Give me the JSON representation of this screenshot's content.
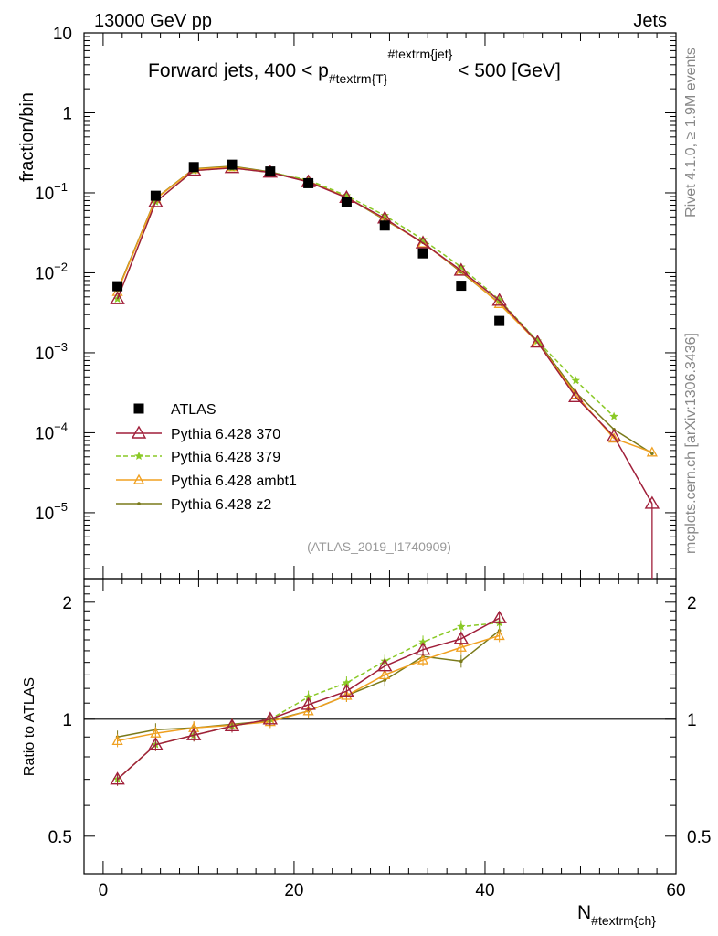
{
  "header": {
    "left": "13000 GeV pp",
    "right": "Jets"
  },
  "side_labels": {
    "upper": "Rivet 4.1.0, ≥ 1.9M events",
    "lower": "mcplots.cern.ch [arXiv:1306.3436]"
  },
  "chart_data": {
    "type": "line",
    "title": "Forward jets, 400 < p",
    "title_sub": "#textrm{T}",
    "title_sup": "#textrm{jet}",
    "title_tail": " < 500 [GeV]",
    "ylabel": "fraction/bin",
    "ratio_ylabel": "Ratio to ATLAS",
    "xlabel": "N",
    "xlabel_sub": "#textrm{ch}",
    "watermark": "(ATLAS_2019_I1740909)",
    "xlim": [
      -2,
      60
    ],
    "ylim": [
      1.5e-06,
      10
    ],
    "ratio_ylim": [
      0.4,
      2.3
    ],
    "x_ticks": [
      "0",
      "20",
      "40",
      "60"
    ],
    "y_ticks": [
      {
        "base": "10",
        "exp": "",
        "value": 10
      },
      {
        "base": "1",
        "exp": "",
        "value": 1
      },
      {
        "base": "10",
        "exp": "−1",
        "value": 0.1
      },
      {
        "base": "10",
        "exp": "−2",
        "value": 0.01
      },
      {
        "base": "10",
        "exp": "−3",
        "value": 0.001
      },
      {
        "base": "10",
        "exp": "−4",
        "value": 0.0001
      },
      {
        "base": "10",
        "exp": "−5",
        "value": 1e-05
      }
    ],
    "ratio_ticks": [
      "0.5",
      "1",
      "2"
    ],
    "x": [
      1.5,
      5.5,
      9.5,
      13.5,
      17.5,
      21.5,
      25.5,
      29.5,
      33.5,
      37.5,
      41.5,
      45.5,
      49.5,
      53.5,
      57.5
    ],
    "series": [
      {
        "name": "ATLAS",
        "color": "#000000",
        "marker": "square",
        "values": [
          0.0068,
          0.092,
          0.21,
          0.225,
          0.185,
          0.132,
          0.077,
          0.039,
          0.0175,
          0.0069,
          0.0025,
          null,
          null,
          null,
          null
        ],
        "ratio": []
      },
      {
        "name": "Pythia 6.428 370",
        "color": "#a01f3a",
        "marker": "open-triangle",
        "values": [
          0.0047,
          0.077,
          0.19,
          0.205,
          0.18,
          0.137,
          0.087,
          0.048,
          0.0235,
          0.0107,
          0.0045,
          0.00135,
          0.00028,
          9e-05,
          1.3e-05
        ],
        "ratio": [
          0.7,
          0.86,
          0.91,
          0.96,
          1.0,
          1.09,
          1.18,
          1.37,
          1.51,
          1.61,
          1.82
        ]
      },
      {
        "name": "Pythia 6.428 379",
        "color": "#8ac926",
        "marker": "star",
        "dashed": true,
        "values": [
          0.0047,
          0.077,
          0.19,
          0.205,
          0.18,
          0.145,
          0.092,
          0.052,
          0.026,
          0.0118,
          0.0046,
          0.0014,
          0.00045,
          0.00016,
          null
        ],
        "ratio": [
          0.7,
          0.86,
          0.91,
          0.96,
          1.0,
          1.14,
          1.24,
          1.41,
          1.58,
          1.73,
          1.77
        ]
      },
      {
        "name": "Pythia 6.428 ambt1",
        "color": "#f0a020",
        "marker": "open-triangle-small",
        "values": [
          0.0058,
          0.084,
          0.198,
          0.21,
          0.18,
          0.138,
          0.088,
          0.047,
          0.0235,
          0.0105,
          0.0041,
          0.00135,
          0.0003,
          8.5e-05,
          5.7e-05
        ],
        "ratio": [
          0.88,
          0.92,
          0.95,
          0.965,
          0.985,
          1.05,
          1.15,
          1.3,
          1.42,
          1.53,
          1.64
        ]
      },
      {
        "name": "Pythia 6.428 z2",
        "color": "#7a7a1a",
        "marker": "dot",
        "values": [
          0.006,
          0.085,
          0.2,
          0.215,
          0.183,
          0.14,
          0.088,
          0.046,
          0.024,
          0.0102,
          0.0042,
          0.0014,
          0.00032,
          0.00011,
          5.5e-05
        ],
        "ratio": [
          0.9,
          0.94,
          0.95,
          0.97,
          0.99,
          1.05,
          1.15,
          1.26,
          1.45,
          1.41,
          1.69
        ]
      }
    ]
  }
}
